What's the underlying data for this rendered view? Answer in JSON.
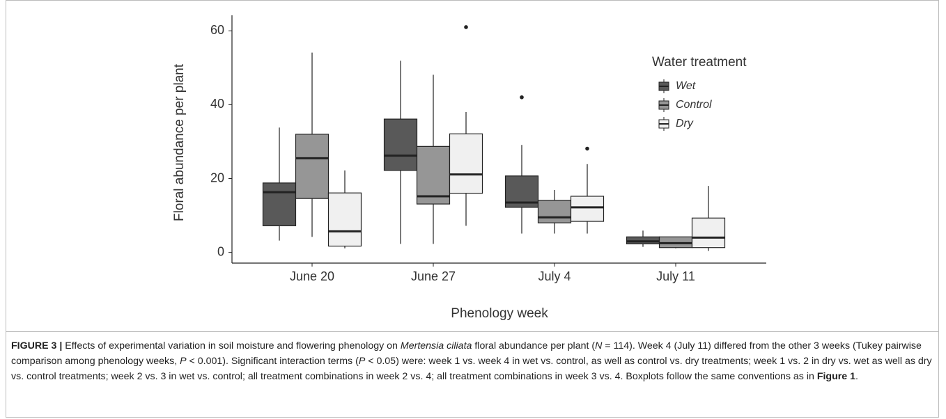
{
  "chart_data": {
    "type": "boxplot",
    "ylabel": "Floral abundance per plant",
    "xlabel": "Phenology week",
    "categories": [
      "June 20",
      "June 27",
      "July 4",
      "July 11"
    ],
    "ylim": [
      -2.9,
      64.2
    ],
    "yticks": [
      0,
      20,
      40,
      60
    ],
    "legend_title": "Water treatment",
    "legend_position": "upper right",
    "series": [
      {
        "name": "Wet",
        "color": "#595959",
        "boxes": [
          {
            "min": 3.2,
            "q1": 7.2,
            "median": 16.3,
            "q3": 18.8,
            "max": 33.8,
            "outliers": []
          },
          {
            "min": 2.3,
            "q1": 22.2,
            "median": 26.2,
            "q3": 36.1,
            "max": 51.9,
            "outliers": []
          },
          {
            "min": 5.1,
            "q1": 12.2,
            "median": 13.5,
            "q3": 20.7,
            "max": 29.1,
            "outliers": [
              42
            ]
          },
          {
            "min": 1.5,
            "q1": 2.3,
            "median": 3,
            "q3": 4.2,
            "max": 5.9,
            "outliers": []
          }
        ]
      },
      {
        "name": "Control",
        "color": "#969696",
        "boxes": [
          {
            "min": 4.2,
            "q1": 14.6,
            "median": 25.5,
            "q3": 32,
            "max": 54.1,
            "outliers": []
          },
          {
            "min": 2.3,
            "q1": 13.1,
            "median": 15.2,
            "q3": 28.7,
            "max": 48.1,
            "outliers": []
          },
          {
            "min": 5.1,
            "q1": 8,
            "median": 9.5,
            "q3": 14.1,
            "max": 16.9,
            "outliers": []
          },
          {
            "min": 1.1,
            "q1": 1.3,
            "median": 2.5,
            "q3": 4.2,
            "max": 4.2,
            "outliers": []
          }
        ]
      },
      {
        "name": "Dry",
        "color": "#f0f0f0",
        "boxes": [
          {
            "min": 1.1,
            "q1": 1.7,
            "median": 5.7,
            "q3": 16.1,
            "max": 22.2,
            "outliers": []
          },
          {
            "min": 7.2,
            "q1": 16,
            "median": 21.1,
            "q3": 32.1,
            "max": 38,
            "outliers": [
              61
            ]
          },
          {
            "min": 5.1,
            "q1": 8.4,
            "median": 12.2,
            "q3": 15.2,
            "max": 23.9,
            "outliers": [
              28.1
            ]
          },
          {
            "min": 0.4,
            "q1": 1.3,
            "median": 4,
            "q3": 9.3,
            "max": 18,
            "outliers": []
          }
        ]
      }
    ]
  },
  "caption": [
    {
      "text": "FIGURE 3 |",
      "style": "bold"
    },
    {
      "text": " Effects of experimental variation in soil moisture and flowering phenology on ",
      "style": "normal"
    },
    {
      "text": "Mertensia ciliata",
      "style": "italic"
    },
    {
      "text": " floral abundance per plant (",
      "style": "normal"
    },
    {
      "text": "N",
      "style": "italic"
    },
    {
      "text": " = 114). Week 4 (July 11) differed from the other 3 weeks (Tukey pairwise comparison among phenology weeks, ",
      "style": "normal"
    },
    {
      "text": "P",
      "style": "italic"
    },
    {
      "text": " < 0.001). Significant interaction terms (",
      "style": "normal"
    },
    {
      "text": "P",
      "style": "italic"
    },
    {
      "text": " < 0.05) were: week 1 vs. week 4 in wet vs. control, as well as control vs. dry treatments; week 1 vs. 2 in dry vs. wet as well as dry vs. control treatments; week 2 vs. 3 in wet vs. control; all treatment combinations in week 2 vs. 4; all treatment combinations in week 3 vs. 4. Boxplots follow the same conventions as in ",
      "style": "normal"
    },
    {
      "text": "Figure 1",
      "style": "bold"
    },
    {
      "text": ".",
      "style": "normal"
    }
  ]
}
